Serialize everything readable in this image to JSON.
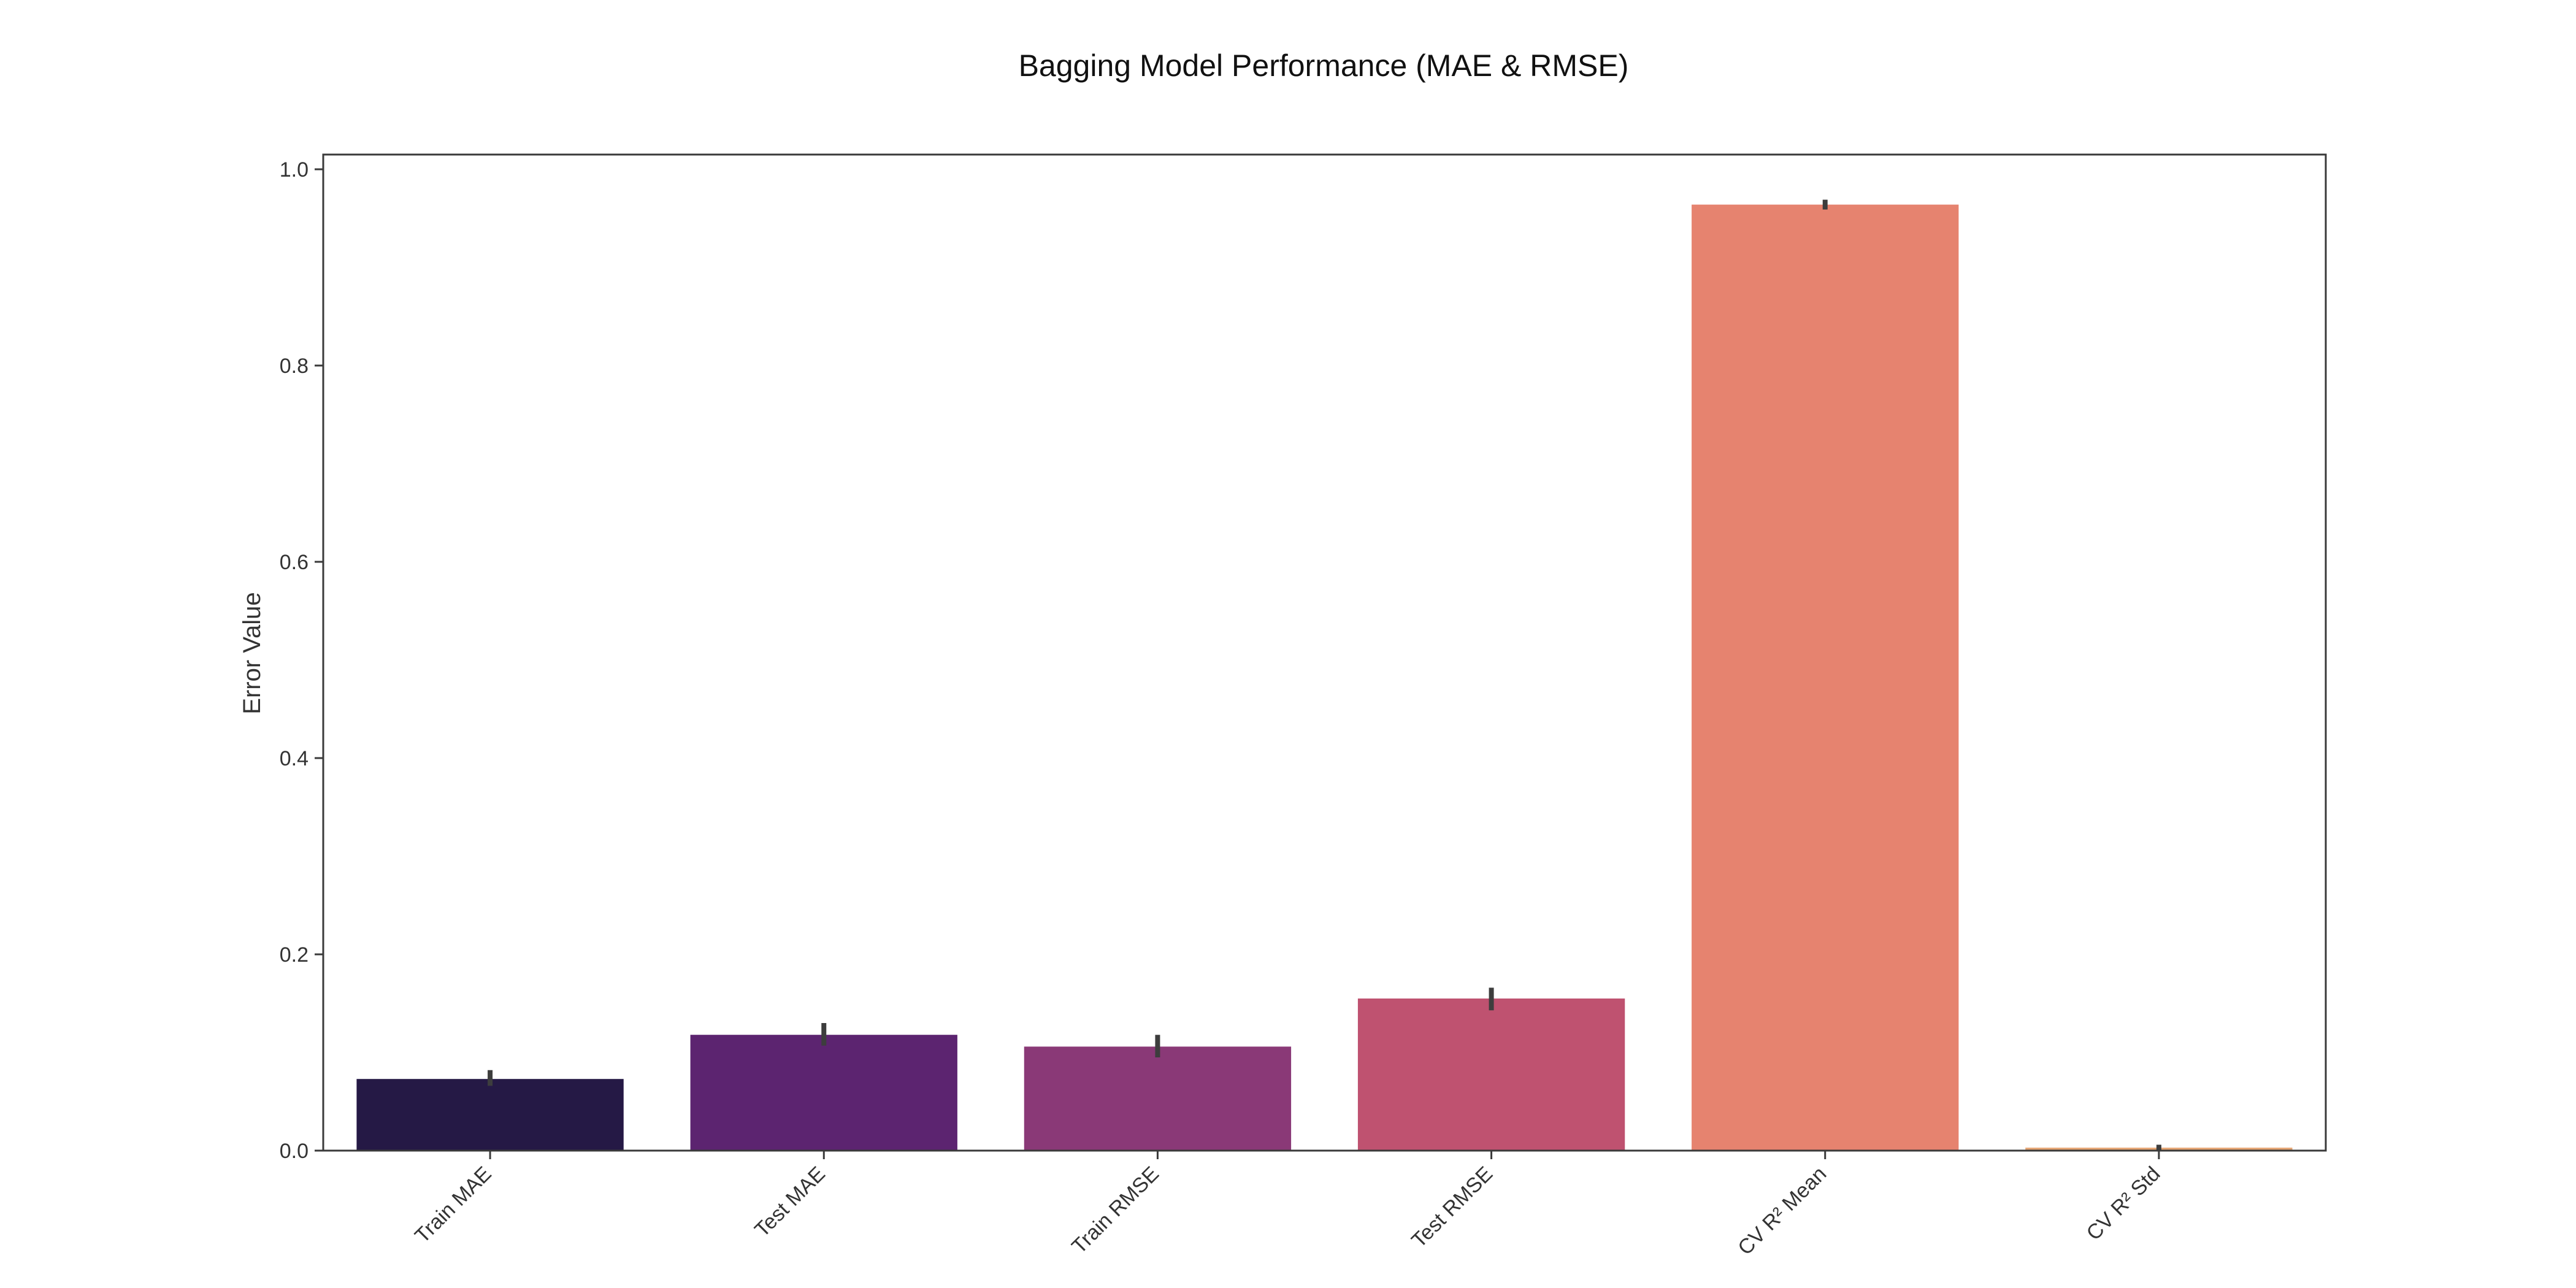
{
  "chart_data": {
    "type": "bar",
    "title": "Bagging Model Performance (MAE & RMSE)",
    "xlabel": "",
    "ylabel": "Error Value",
    "categories": [
      "Train MAE",
      "Test MAE",
      "Train RMSE",
      "Test RMSE",
      "CV R² Mean",
      "CV R² Std"
    ],
    "values": [
      0.073,
      0.118,
      0.106,
      0.155,
      0.964,
      0.003
    ],
    "error_bars": [
      [
        0.066,
        0.082
      ],
      [
        0.107,
        0.13
      ],
      [
        0.095,
        0.118
      ],
      [
        0.143,
        0.166
      ],
      [
        0.959,
        0.969
      ],
      [
        0.0,
        0.006
      ]
    ],
    "colors": [
      "#251945",
      "#5c2470",
      "#8a3977",
      "#bf5270",
      "#e6836f",
      "#e5a472"
    ],
    "error_bar_color": "#3d3d3d",
    "ylim": [
      0,
      1.0
    ],
    "yticks": [
      0.0,
      0.2,
      0.4,
      0.6,
      0.8,
      1.0
    ],
    "ytick_labels": [
      "0.0",
      "0.2",
      "0.4",
      "0.6",
      "0.8",
      "1.0"
    ],
    "grid": false,
    "legend": "none"
  }
}
